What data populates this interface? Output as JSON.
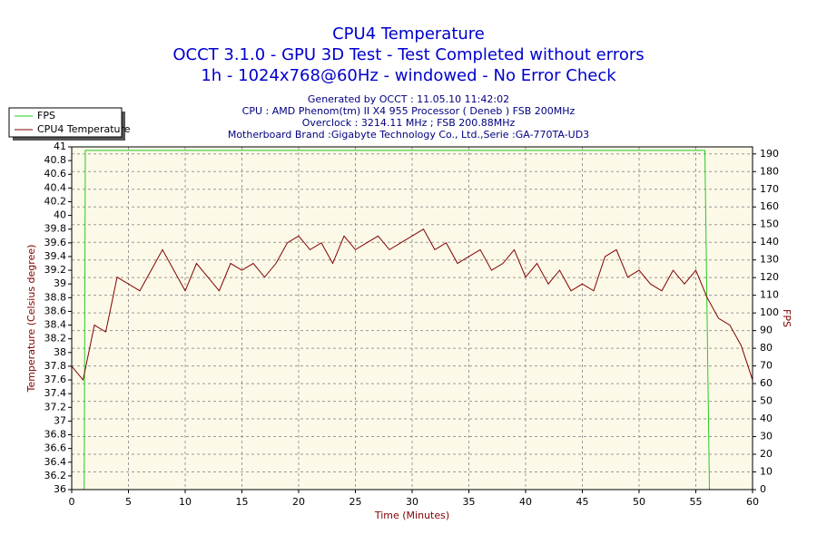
{
  "chart_data": {
    "type": "line",
    "title": "CPU4 Temperature",
    "subtitle": [
      "OCCT 3.1.0 - GPU 3D Test - Test Completed without errors",
      "1h - 1024x768@60Hz - windowed - No Error Check"
    ],
    "annotations": [
      "Generated by OCCT : 11.05.10 11:42:02",
      "CPU : AMD Phenom(tm) II X4 955 Processor ( Deneb ) FSB 200MHz",
      "Overclock : 3214.11 MHz ; FSB 200.88MHz",
      "Motherboard Brand :Gigabyte Technology Co., Ltd.,Serie :GA-770TA-UD3"
    ],
    "xlabel": "Time (Minutes)",
    "ylabel": "Temperature (Celsius degree)",
    "y2label": "FPS",
    "xlim": [
      0,
      60
    ],
    "xticks": [
      0,
      5,
      10,
      15,
      20,
      25,
      30,
      35,
      40,
      45,
      50,
      55,
      60
    ],
    "ylim": [
      36,
      41
    ],
    "yticks": [
      36,
      36.2,
      36.4,
      36.6,
      36.8,
      37,
      37.2,
      37.4,
      37.6,
      37.8,
      38,
      38.2,
      38.4,
      38.6,
      38.8,
      39,
      39.2,
      39.4,
      39.6,
      39.8,
      40,
      40.2,
      40.4,
      40.6,
      40.8,
      41
    ],
    "y2lim": [
      0,
      194
    ],
    "y2ticks": [
      0,
      10,
      20,
      30,
      40,
      50,
      60,
      70,
      80,
      90,
      100,
      110,
      120,
      130,
      140,
      150,
      160,
      170,
      180,
      190
    ],
    "grid": true,
    "legend": "top-left",
    "series": [
      {
        "name": "FPS",
        "color": "#22cc22",
        "axis": "y2",
        "x": [
          0,
          1.1,
          1.2,
          55.8,
          56.2,
          60
        ],
        "values": [
          0,
          0,
          192,
          192,
          0,
          0
        ]
      },
      {
        "name": "CPU4 Temperature",
        "color": "#800000",
        "x": [
          0,
          1,
          2,
          3,
          4,
          5,
          6,
          7,
          8,
          9,
          10,
          11,
          12,
          13,
          14,
          15,
          16,
          17,
          18,
          19,
          20,
          21,
          22,
          23,
          24,
          25,
          26,
          27,
          28,
          29,
          30,
          31,
          32,
          33,
          34,
          35,
          36,
          37,
          38,
          39,
          40,
          41,
          42,
          43,
          44,
          45,
          46,
          47,
          48,
          49,
          50,
          51,
          52,
          53,
          54,
          55,
          56,
          57,
          58,
          59,
          60
        ],
        "values": [
          37.8,
          37.6,
          38.4,
          38.3,
          39.1,
          39.0,
          38.9,
          39.2,
          39.5,
          39.2,
          38.9,
          39.3,
          39.1,
          38.9,
          39.3,
          39.2,
          39.3,
          39.1,
          39.3,
          39.6,
          39.7,
          39.5,
          39.6,
          39.3,
          39.7,
          39.5,
          39.6,
          39.7,
          39.5,
          39.6,
          39.7,
          39.8,
          39.5,
          39.6,
          39.3,
          39.4,
          39.5,
          39.2,
          39.3,
          39.5,
          39.1,
          39.3,
          39.0,
          39.2,
          38.9,
          39.0,
          38.9,
          39.4,
          39.5,
          39.1,
          39.2,
          39.0,
          38.9,
          39.2,
          39.0,
          39.2,
          38.8,
          38.5,
          38.4,
          38.1,
          37.6
        ]
      }
    ]
  }
}
